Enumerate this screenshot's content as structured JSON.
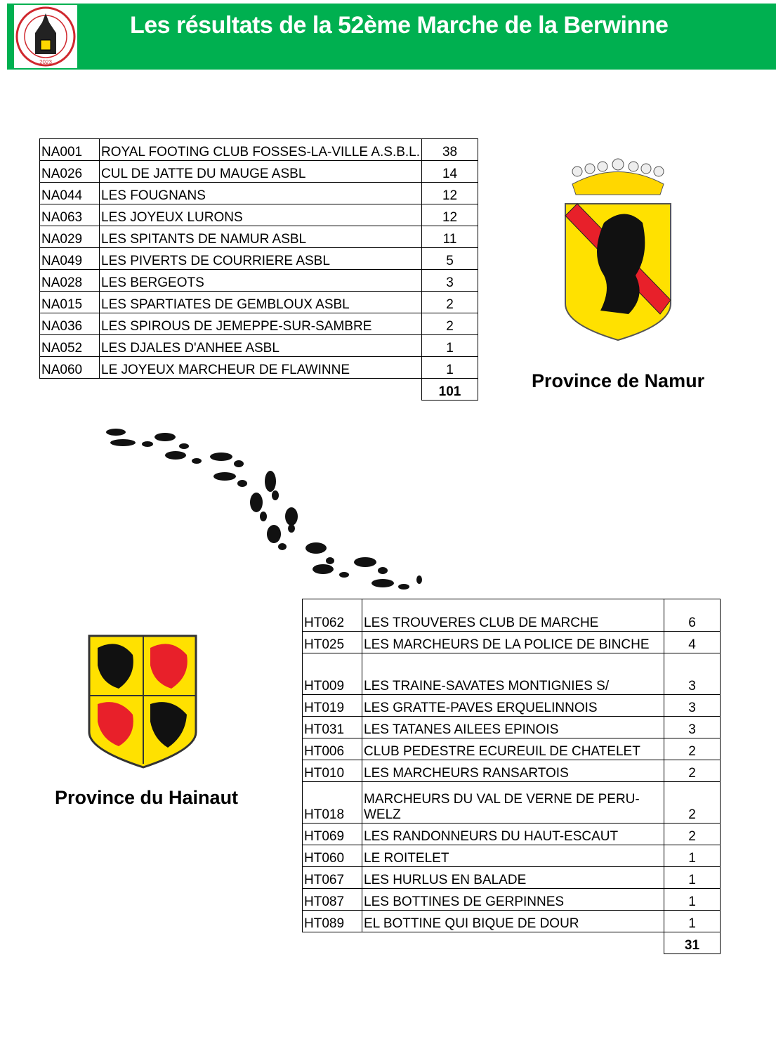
{
  "header": {
    "title": "Les résultats de la 52ème Marche de la Berwinne",
    "logo_text": "LES PEDESTRIANS CLERMONT S/B 50 ANS 2023"
  },
  "namur": {
    "label": "Province de Namur",
    "rows": [
      {
        "code": "NA001",
        "name": "ROYAL FOOTING CLUB FOSSES-LA-VILLE A.S.B.L.",
        "count": "38"
      },
      {
        "code": "NA026",
        "name": "CUL DE JATTE DU MAUGE ASBL",
        "count": "14"
      },
      {
        "code": "NA044",
        "name": "LES FOUGNANS",
        "count": "12"
      },
      {
        "code": "NA063",
        "name": "LES JOYEUX LURONS",
        "count": "12"
      },
      {
        "code": "NA029",
        "name": "LES SPITANTS DE NAMUR ASBL",
        "count": "11"
      },
      {
        "code": "NA049",
        "name": "LES PIVERTS DE COURRIERE ASBL",
        "count": "5"
      },
      {
        "code": "NA028",
        "name": "LES BERGEOTS",
        "count": "3"
      },
      {
        "code": "NA015",
        "name": "LES SPARTIATES DE GEMBLOUX ASBL",
        "count": "2"
      },
      {
        "code": "NA036",
        "name": "LES SPIROUS DE JEMEPPE-SUR-SAMBRE",
        "count": "2"
      },
      {
        "code": "NA052",
        "name": "LES DJALES D'ANHEE ASBL",
        "count": "1"
      },
      {
        "code": "NA060",
        "name": "LE JOYEUX MARCHEUR DE FLAWINNE",
        "count": "1"
      }
    ],
    "total": "101"
  },
  "hainaut": {
    "label": "Province du Hainaut",
    "rows": [
      {
        "code": "HT062",
        "name": "LES TROUVERES CLUB DE MARCHE",
        "count": "6"
      },
      {
        "code": "HT025",
        "name": "LES MARCHEURS DE LA POLICE DE BINCHE",
        "count": "4"
      },
      {
        "code": "HT009",
        "name": "LES TRAINE-SAVATES MONTIGNIES S/",
        "count": "3"
      },
      {
        "code": "HT019",
        "name": "LES GRATTE-PAVES ERQUELINNOIS",
        "count": "3"
      },
      {
        "code": "HT031",
        "name": "LES TATANES AILEES EPINOIS",
        "count": "3"
      },
      {
        "code": "HT006",
        "name": "CLUB PEDESTRE ECUREUIL DE CHATELET",
        "count": "2"
      },
      {
        "code": "HT010",
        "name": "LES MARCHEURS RANSARTOIS",
        "count": "2"
      },
      {
        "code": "HT018",
        "name": "MARCHEURS DU VAL DE VERNE DE PERU-WELZ",
        "count": "2"
      },
      {
        "code": "HT069",
        "name": "LES RANDONNEURS DU HAUT-ESCAUT",
        "count": "2"
      },
      {
        "code": "HT060",
        "name": "LE ROITELET",
        "count": "1"
      },
      {
        "code": "HT067",
        "name": "LES HURLUS EN BALADE",
        "count": "1"
      },
      {
        "code": "HT087",
        "name": "LES BOTTINES DE GERPINNES",
        "count": "1"
      },
      {
        "code": "HT089",
        "name": "EL BOTTINE QUI BIQUE DE DOUR",
        "count": "1"
      }
    ],
    "total": "31"
  },
  "colors": {
    "banner": "#00b050",
    "crest_yellow": "#ffe100",
    "crest_red": "#e8202a"
  }
}
